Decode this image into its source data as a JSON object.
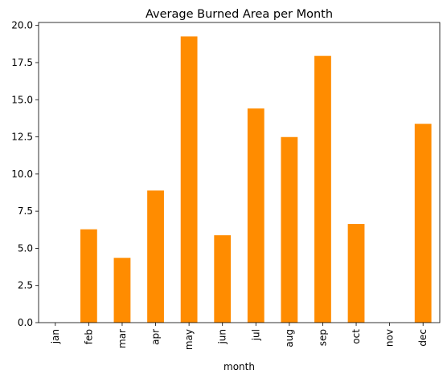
{
  "chart_data": {
    "type": "bar",
    "title": "Average Burned Area per Month",
    "xlabel": "month",
    "ylabel": "",
    "categories": [
      "jan",
      "feb",
      "mar",
      "apr",
      "may",
      "jun",
      "jul",
      "aug",
      "sep",
      "oct",
      "nov",
      "dec"
    ],
    "values": [
      0.0,
      6.28,
      4.36,
      8.89,
      19.26,
      5.88,
      14.41,
      12.49,
      17.95,
      6.64,
      0.0,
      13.38
    ],
    "ylim": [
      0,
      20.2
    ],
    "yticks": [
      "0.0",
      "2.5",
      "5.0",
      "7.5",
      "10.0",
      "12.5",
      "15.0",
      "17.5",
      "20.0"
    ],
    "bar_color": "#ff8c00",
    "grid": false,
    "legend": false
  }
}
